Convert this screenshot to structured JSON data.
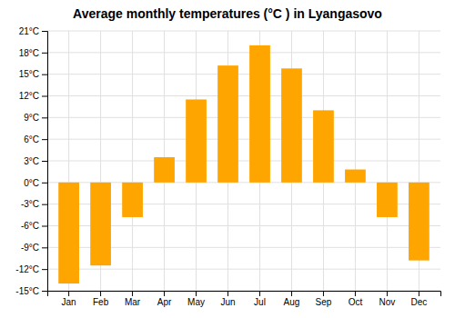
{
  "chart_data": {
    "type": "bar",
    "title": "Average monthly temperatures (°C ) in Lyangasovo",
    "categories": [
      "Jan",
      "Feb",
      "Mar",
      "Apr",
      "May",
      "Jun",
      "Jul",
      "Aug",
      "Sep",
      "Oct",
      "Nov",
      "Dec"
    ],
    "values": [
      -14,
      -11.5,
      -4.8,
      3.5,
      11.5,
      16.2,
      19.0,
      15.8,
      10.0,
      1.8,
      -4.8,
      -10.8
    ],
    "color": "#FFA500",
    "ylim": [
      -15,
      21
    ],
    "yticks": [
      {
        "value": -15,
        "label": "-15°C"
      },
      {
        "value": -12,
        "label": "-12°C"
      },
      {
        "value": -9,
        "label": "-9°C"
      },
      {
        "value": -6,
        "label": "-6°C"
      },
      {
        "value": -3,
        "label": "-3°C"
      },
      {
        "value": 0,
        "label": "0°C"
      },
      {
        "value": 3,
        "label": "3°C"
      },
      {
        "value": 6,
        "label": "6°C"
      },
      {
        "value": 9,
        "label": "9°C"
      },
      {
        "value": 12,
        "label": "12°C"
      },
      {
        "value": 15,
        "label": "15°C"
      },
      {
        "value": 18,
        "label": "18°C"
      },
      {
        "value": 21,
        "label": "21°C"
      }
    ],
    "grid": true
  }
}
